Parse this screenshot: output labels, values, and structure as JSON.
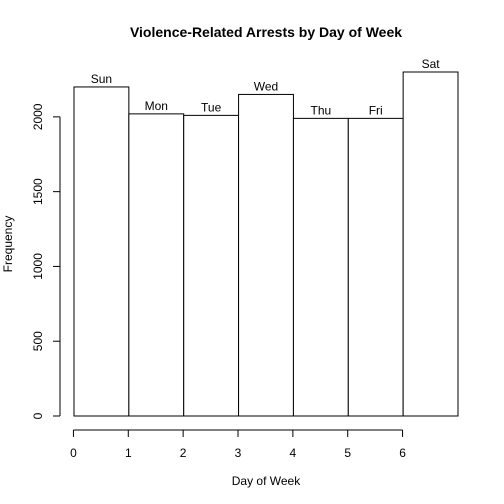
{
  "chart_data": {
    "type": "bar",
    "title": "Violence-Related Arrests  by Day of Week",
    "xlabel": "Day of Week",
    "ylabel": "Frequency",
    "x_ticks": [
      "0",
      "1",
      "2",
      "3",
      "4",
      "5",
      "6"
    ],
    "y_ticks": [
      "0",
      "500",
      "1000",
      "1500",
      "2000"
    ],
    "categories": [
      "Sun",
      "Mon",
      "Tue",
      "Wed",
      "Thu",
      "Fri",
      "Sat"
    ],
    "values": [
      2200,
      2020,
      2010,
      2150,
      1990,
      1990,
      2300
    ],
    "ylim": [
      0,
      2300
    ],
    "grid": false,
    "legend": "none"
  }
}
